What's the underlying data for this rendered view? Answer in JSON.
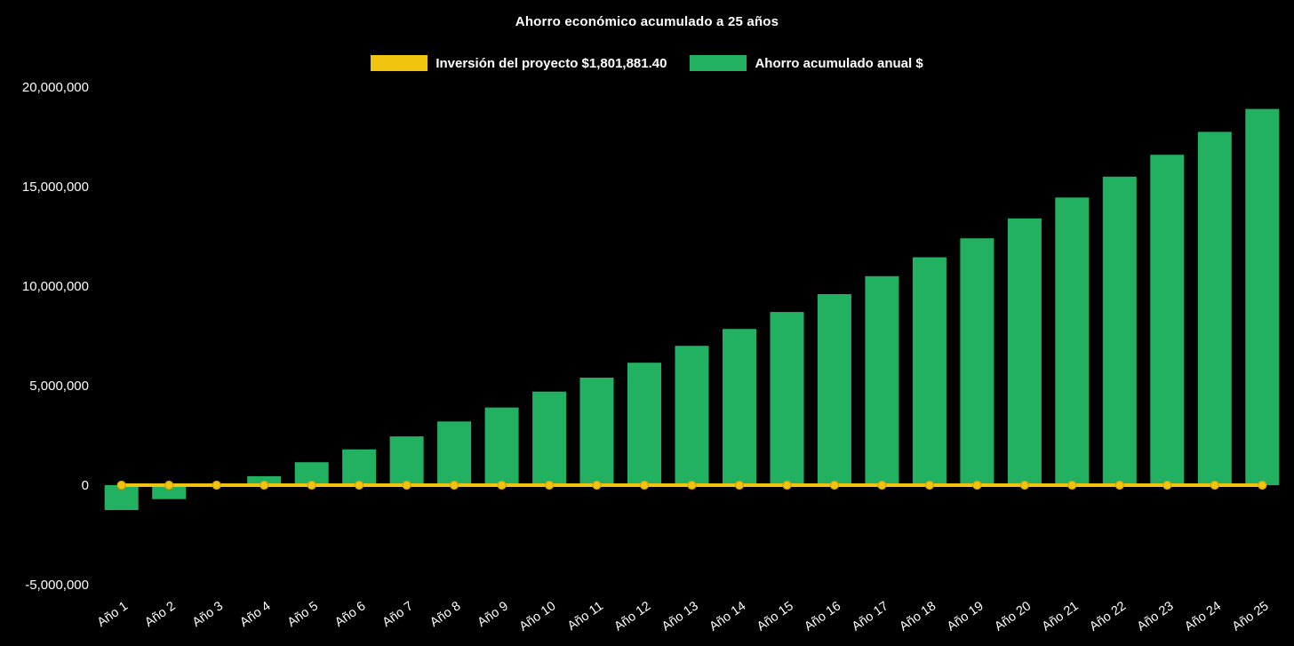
{
  "chart_data": {
    "type": "bar",
    "title": "Ahorro económico acumulado a 25 años",
    "categories": [
      "Año 1",
      "Año 2",
      "Año 3",
      "Año 4",
      "Año 5",
      "Año 6",
      "Año 7",
      "Año 8",
      "Año 9",
      "Año 10",
      "Año 11",
      "Año 12",
      "Año 13",
      "Año 14",
      "Año 15",
      "Año 16",
      "Año 17",
      "Año 18",
      "Año 19",
      "Año 20",
      "Año 21",
      "Año 22",
      "Año 23",
      "Año 24",
      "Año 25"
    ],
    "series": [
      {
        "name": "Inversión del proyecto $1,801,881.40",
        "type": "line",
        "color": "#f1c40f",
        "marker_stroke_color": "#d9a404",
        "values": [
          0,
          0,
          0,
          0,
          0,
          0,
          0,
          0,
          0,
          0,
          0,
          0,
          0,
          0,
          0,
          0,
          0,
          0,
          0,
          0,
          0,
          0,
          0,
          0,
          0
        ]
      },
      {
        "name": "Ahorro acumulado anual $",
        "type": "bar",
        "color": "#22b160",
        "values": [
          -1250000,
          -700000,
          -50000,
          450000,
          1150000,
          1800000,
          2450000,
          3200000,
          3900000,
          4700000,
          5400000,
          6150000,
          7000000,
          7850000,
          8700000,
          9600000,
          10500000,
          11450000,
          12400000,
          13400000,
          14450000,
          15500000,
          16600000,
          17750000,
          18900000
        ]
      }
    ],
    "ylim": [
      -5000000,
      20000000
    ],
    "yticks": [
      20000000,
      15000000,
      10000000,
      5000000,
      0,
      -5000000
    ],
    "ytick_labels": [
      "20,000,000",
      "15,000,000",
      "10,000,000",
      "5,000,000",
      "0",
      "-5,000,000"
    ],
    "xlabel": "",
    "ylabel": "",
    "grid": false,
    "legend_position": "top",
    "background_color": "#000000",
    "text_color": "#ffffff"
  }
}
